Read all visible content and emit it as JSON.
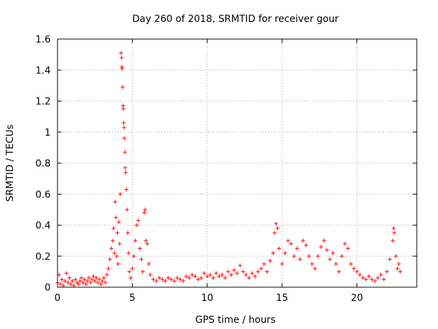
{
  "chart_data": {
    "type": "scatter",
    "title": "Day 260 of 2018, SRMTID for receiver gour",
    "xlabel": "GPS time / hours",
    "ylabel": "SRMTID / TECUs",
    "xlim": [
      0,
      24
    ],
    "ylim": [
      0,
      1.6
    ],
    "xticks": [
      0,
      5,
      10,
      15,
      20
    ],
    "xtick_labels": [
      "0",
      "5",
      "10",
      "15",
      "20"
    ],
    "yticks": [
      0,
      0.2,
      0.4,
      0.6,
      0.8,
      1.0,
      1.2,
      1.4,
      1.6
    ],
    "ytick_labels": [
      "0",
      "0.2",
      "0.4",
      "0.6",
      "0.8",
      "1",
      "1.2",
      "1.4",
      "1.6"
    ],
    "grid": true,
    "marker": "+",
    "series": [
      {
        "name": "SRMTID",
        "color": "#ff0000",
        "points": [
          [
            0.0,
            0.03
          ],
          [
            0.1,
            0.08
          ],
          [
            0.2,
            0.02
          ],
          [
            0.3,
            0.05
          ],
          [
            0.4,
            0.01
          ],
          [
            0.5,
            0.04
          ],
          [
            0.6,
            0.09
          ],
          [
            0.7,
            0.03
          ],
          [
            0.8,
            0.06
          ],
          [
            0.9,
            0.02
          ],
          [
            1.0,
            0.04
          ],
          [
            1.1,
            0.01
          ],
          [
            1.2,
            0.05
          ],
          [
            1.3,
            0.03
          ],
          [
            1.4,
            0.02
          ],
          [
            1.5,
            0.04
          ],
          [
            1.6,
            0.06
          ],
          [
            1.7,
            0.03
          ],
          [
            1.8,
            0.05
          ],
          [
            1.9,
            0.02
          ],
          [
            2.0,
            0.04
          ],
          [
            2.1,
            0.06
          ],
          [
            2.2,
            0.03
          ],
          [
            2.3,
            0.05
          ],
          [
            2.4,
            0.07
          ],
          [
            2.5,
            0.04
          ],
          [
            2.6,
            0.06
          ],
          [
            2.7,
            0.03
          ],
          [
            2.8,
            0.05
          ],
          [
            2.9,
            0.02
          ],
          [
            3.0,
            0.04
          ],
          [
            3.1,
            0.06
          ],
          [
            3.2,
            0.03
          ],
          [
            3.3,
            0.08
          ],
          [
            3.4,
            0.12
          ],
          [
            3.5,
            0.18
          ],
          [
            3.6,
            0.25
          ],
          [
            3.7,
            0.3
          ],
          [
            3.75,
            0.38
          ],
          [
            3.8,
            0.22
          ],
          [
            3.85,
            0.55
          ],
          [
            3.9,
            0.45
          ],
          [
            3.95,
            0.2
          ],
          [
            4.0,
            0.35
          ],
          [
            4.05,
            0.15
          ],
          [
            4.1,
            0.42
          ],
          [
            4.15,
            0.28
          ],
          [
            4.2,
            0.6
          ],
          [
            4.25,
            1.51
          ],
          [
            4.28,
            1.48
          ],
          [
            4.3,
            1.42
          ],
          [
            4.32,
            1.41
          ],
          [
            4.35,
            1.29
          ],
          [
            4.38,
            1.17
          ],
          [
            4.4,
            1.15
          ],
          [
            4.42,
            1.06
          ],
          [
            4.45,
            1.03
          ],
          [
            4.47,
            0.96
          ],
          [
            4.5,
            0.87
          ],
          [
            4.52,
            0.77
          ],
          [
            4.55,
            0.74
          ],
          [
            4.6,
            0.63
          ],
          [
            4.65,
            0.5
          ],
          [
            4.7,
            0.35
          ],
          [
            4.75,
            0.22
          ],
          [
            4.8,
            0.1
          ],
          [
            4.9,
            0.06
          ],
          [
            5.0,
            0.12
          ],
          [
            5.1,
            0.2
          ],
          [
            5.2,
            0.3
          ],
          [
            5.3,
            0.4
          ],
          [
            5.4,
            0.43
          ],
          [
            5.5,
            0.25
          ],
          [
            5.6,
            0.18
          ],
          [
            5.7,
            0.1
          ],
          [
            5.8,
            0.48
          ],
          [
            5.85,
            0.5
          ],
          [
            5.9,
            0.3
          ],
          [
            6.0,
            0.28
          ],
          [
            6.1,
            0.15
          ],
          [
            6.2,
            0.08
          ],
          [
            6.4,
            0.05
          ],
          [
            6.6,
            0.04
          ],
          [
            6.8,
            0.06
          ],
          [
            7.0,
            0.05
          ],
          [
            7.2,
            0.04
          ],
          [
            7.4,
            0.06
          ],
          [
            7.6,
            0.05
          ],
          [
            7.8,
            0.04
          ],
          [
            8.0,
            0.06
          ],
          [
            8.2,
            0.05
          ],
          [
            8.4,
            0.04
          ],
          [
            8.6,
            0.07
          ],
          [
            8.8,
            0.06
          ],
          [
            9.0,
            0.08
          ],
          [
            9.2,
            0.07
          ],
          [
            9.4,
            0.05
          ],
          [
            9.6,
            0.06
          ],
          [
            9.8,
            0.09
          ],
          [
            10.0,
            0.07
          ],
          [
            10.2,
            0.08
          ],
          [
            10.4,
            0.06
          ],
          [
            10.6,
            0.09
          ],
          [
            10.8,
            0.07
          ],
          [
            11.0,
            0.08
          ],
          [
            11.2,
            0.06
          ],
          [
            11.4,
            0.1
          ],
          [
            11.6,
            0.08
          ],
          [
            11.8,
            0.11
          ],
          [
            12.0,
            0.09
          ],
          [
            12.2,
            0.14
          ],
          [
            12.4,
            0.1
          ],
          [
            12.6,
            0.08
          ],
          [
            12.8,
            0.06
          ],
          [
            13.0,
            0.09
          ],
          [
            13.2,
            0.07
          ],
          [
            13.4,
            0.1
          ],
          [
            13.6,
            0.12
          ],
          [
            13.8,
            0.15
          ],
          [
            14.0,
            0.1
          ],
          [
            14.2,
            0.17
          ],
          [
            14.4,
            0.22
          ],
          [
            14.5,
            0.35
          ],
          [
            14.6,
            0.41
          ],
          [
            14.7,
            0.38
          ],
          [
            14.8,
            0.25
          ],
          [
            15.0,
            0.15
          ],
          [
            15.2,
            0.22
          ],
          [
            15.4,
            0.3
          ],
          [
            15.6,
            0.28
          ],
          [
            15.8,
            0.2
          ],
          [
            16.0,
            0.25
          ],
          [
            16.2,
            0.18
          ],
          [
            16.4,
            0.3
          ],
          [
            16.6,
            0.27
          ],
          [
            16.8,
            0.2
          ],
          [
            17.0,
            0.15
          ],
          [
            17.2,
            0.12
          ],
          [
            17.4,
            0.2
          ],
          [
            17.6,
            0.26
          ],
          [
            17.8,
            0.3
          ],
          [
            18.0,
            0.24
          ],
          [
            18.2,
            0.18
          ],
          [
            18.4,
            0.22
          ],
          [
            18.6,
            0.15
          ],
          [
            18.8,
            0.1
          ],
          [
            19.0,
            0.2
          ],
          [
            19.2,
            0.28
          ],
          [
            19.4,
            0.25
          ],
          [
            19.6,
            0.15
          ],
          [
            19.8,
            0.12
          ],
          [
            20.0,
            0.1
          ],
          [
            20.2,
            0.08
          ],
          [
            20.4,
            0.06
          ],
          [
            20.6,
            0.05
          ],
          [
            20.8,
            0.07
          ],
          [
            21.0,
            0.05
          ],
          [
            21.2,
            0.04
          ],
          [
            21.4,
            0.06
          ],
          [
            21.6,
            0.08
          ],
          [
            21.8,
            0.05
          ],
          [
            22.0,
            0.1
          ],
          [
            22.2,
            0.18
          ],
          [
            22.4,
            0.3
          ],
          [
            22.45,
            0.38
          ],
          [
            22.5,
            0.35
          ],
          [
            22.6,
            0.2
          ],
          [
            22.7,
            0.12
          ],
          [
            22.8,
            0.15
          ],
          [
            22.9,
            0.1
          ]
        ]
      }
    ]
  }
}
